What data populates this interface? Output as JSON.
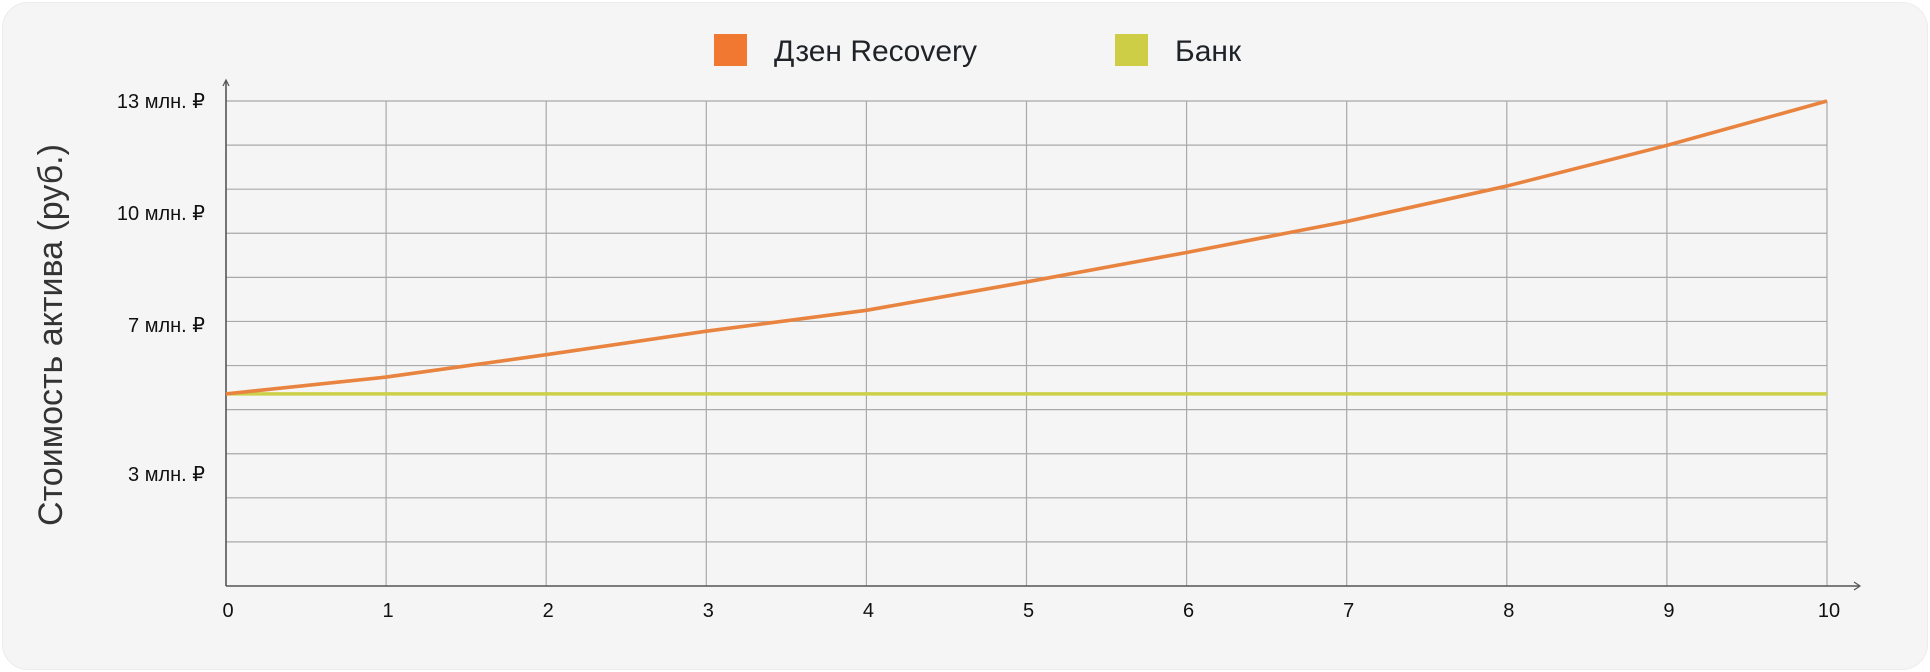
{
  "chart_data": {
    "type": "line",
    "title": "",
    "xlabel": "",
    "ylabel": "Стоимость актива (руб.)",
    "x": [
      0,
      1,
      2,
      3,
      4,
      5,
      6,
      7,
      8,
      9,
      10
    ],
    "xlim": [
      0,
      10
    ],
    "ylim": [
      0,
      13
    ],
    "y_unit": "млн. ₽",
    "x_ticks": [
      "0",
      "1",
      "2",
      "3",
      "4",
      "5",
      "6",
      "7",
      "8",
      "9",
      "10"
    ],
    "y_ticks": [
      {
        "value": 13,
        "label": "13 млн. ₽"
      },
      {
        "value": 10,
        "label": "10 млн. ₽"
      },
      {
        "value": 7,
        "label": "7 млн. ₽"
      },
      {
        "value": 3,
        "label": "3 млн. ₽"
      }
    ],
    "grid": true,
    "legend_placement": "top-center",
    "series": [
      {
        "name": "Дзен Recovery",
        "color": "#E8843F",
        "legend_color": "#F07830",
        "values": [
          5.15,
          5.6,
          6.2,
          6.83,
          7.39,
          8.15,
          8.94,
          9.77,
          10.72,
          11.81,
          13.0
        ]
      },
      {
        "name": "Банк",
        "color": "#CDD04A",
        "legend_color": "#CDCE45",
        "values": [
          5.15,
          5.15,
          5.15,
          5.15,
          5.15,
          5.15,
          5.15,
          5.15,
          5.15,
          5.15,
          5.15
        ]
      }
    ]
  }
}
